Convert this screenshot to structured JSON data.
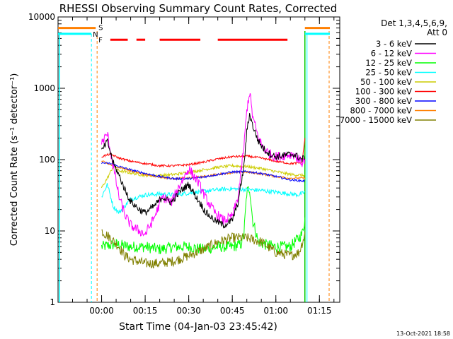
{
  "chart_data": {
    "type": "line",
    "title": "RHESSI Observing Summary Count Rates, Corrected",
    "xlabel": "Start Time (04-Jan-03 23:45:42)",
    "ylabel": "Corrected Count Rate (s⁻¹ detector⁻¹)",
    "y_scale": "log",
    "ylim": [
      1,
      10000
    ],
    "xlim_minutes": [
      -15,
      82
    ],
    "x_ticks": [
      {
        "label": "00:00",
        "minute": 0
      },
      {
        "label": "00:15",
        "minute": 15
      },
      {
        "label": "00:30",
        "minute": 30
      },
      {
        "label": "00:45",
        "minute": 45
      },
      {
        "label": "01:00",
        "minute": 60
      },
      {
        "label": "01:15",
        "minute": 75
      }
    ],
    "y_ticks": [
      {
        "label": "1",
        "value": 1
      },
      {
        "label": "10",
        "value": 10
      },
      {
        "label": "100",
        "value": 100
      },
      {
        "label": "1000",
        "value": 1000
      },
      {
        "label": "10000",
        "value": 10000
      }
    ],
    "legend_title": [
      "Det 1,3,4,5,6,9,",
      "Att 0"
    ],
    "legend_position": "right",
    "footer_date": "13-Oct-2021 18:58",
    "flags": {
      "S_label": "S",
      "N_label": "N",
      "F_label": "F",
      "S_color": "#ff7f00",
      "N_color": "#00ffff",
      "F_color": "#ff0000",
      "S_level": 7000,
      "N_level": 5800,
      "F_level": 4800,
      "F_segments": [
        [
          3,
          9
        ],
        [
          12,
          15
        ],
        [
          20,
          34
        ],
        [
          40,
          64
        ]
      ],
      "eclipse_end_minute": -3.5,
      "eclipse_start_minute": 70
    },
    "series": [
      {
        "name": "3 - 6 keV",
        "color": "#000000",
        "noise": 0.05,
        "x": [
          0,
          2,
          4,
          6,
          8,
          10,
          13,
          15,
          18,
          21,
          24,
          27,
          30,
          33,
          36,
          39,
          42,
          45,
          47,
          49,
          50,
          51,
          52,
          54,
          56,
          58,
          60,
          63,
          66,
          69,
          70
        ],
        "y": [
          130,
          180,
          90,
          60,
          38,
          26,
          20,
          18,
          22,
          30,
          25,
          36,
          45,
          28,
          18,
          14,
          12,
          14,
          25,
          80,
          250,
          440,
          300,
          180,
          140,
          120,
          110,
          115,
          120,
          100,
          110
        ]
      },
      {
        "name": "6 - 12 keV",
        "color": "#ff00ff",
        "noise": 0.07,
        "x": [
          0,
          2,
          4,
          6,
          8,
          10,
          13,
          15,
          18,
          21,
          24,
          27,
          30,
          33,
          36,
          39,
          42,
          45,
          47,
          49,
          50,
          51,
          52,
          54,
          56,
          58,
          60,
          63,
          66,
          69,
          70
        ],
        "y": [
          170,
          230,
          80,
          30,
          17,
          12,
          10,
          9,
          15,
          30,
          25,
          45,
          75,
          50,
          28,
          18,
          14,
          16,
          30,
          150,
          500,
          900,
          400,
          200,
          140,
          120,
          110,
          115,
          120,
          90,
          100
        ]
      },
      {
        "name": "12 - 25 keV",
        "color": "#00ff00",
        "noise": 0.08,
        "x": [
          0,
          5,
          10,
          15,
          20,
          25,
          30,
          35,
          40,
          45,
          48,
          49,
          50,
          51,
          52,
          54,
          56,
          60,
          65,
          69,
          70
        ],
        "y": [
          6,
          6.5,
          6,
          6,
          5.5,
          6,
          6,
          5.5,
          6,
          6,
          6.5,
          9,
          35,
          40,
          14,
          7,
          6.5,
          6,
          6,
          9,
          15
        ]
      },
      {
        "name": "25 - 50 keV",
        "color": "#00ffff",
        "noise": 0.03,
        "x": [
          0,
          2,
          4,
          6,
          10,
          15,
          20,
          25,
          30,
          35,
          40,
          45,
          50,
          55,
          60,
          65,
          68,
          70
        ],
        "y": [
          30,
          45,
          22,
          18,
          28,
          32,
          33,
          32,
          34,
          36,
          38,
          39,
          38,
          37,
          35,
          33,
          32,
          35
        ]
      },
      {
        "name": "50 - 100 keV",
        "color": "#cccc00",
        "noise": 0.02,
        "x": [
          0,
          2,
          4,
          6,
          10,
          15,
          20,
          25,
          30,
          35,
          40,
          45,
          50,
          55,
          60,
          65,
          70
        ],
        "y": [
          40,
          55,
          80,
          70,
          65,
          60,
          60,
          62,
          66,
          72,
          78,
          82,
          80,
          75,
          68,
          62,
          60
        ]
      },
      {
        "name": "100 - 300 keV",
        "color": "#ff0000",
        "noise": 0.015,
        "x": [
          0,
          3,
          6,
          10,
          15,
          20,
          25,
          30,
          35,
          40,
          45,
          50,
          55,
          60,
          65,
          69,
          70
        ],
        "y": [
          110,
          120,
          105,
          95,
          88,
          82,
          82,
          85,
          92,
          102,
          110,
          112,
          105,
          95,
          88,
          90,
          200
        ]
      },
      {
        "name": "300 - 800 keV",
        "color": "#0000ff",
        "noise": 0.015,
        "x": [
          0,
          3,
          6,
          10,
          15,
          20,
          25,
          30,
          35,
          40,
          45,
          50,
          55,
          60,
          65,
          70
        ],
        "y": [
          90,
          88,
          80,
          72,
          64,
          58,
          54,
          54,
          57,
          62,
          67,
          68,
          64,
          58,
          52,
          50
        ]
      },
      {
        "name": "800 - 7000 keV",
        "color": "#ff7f00",
        "noise": 0.015,
        "x": [
          0,
          3,
          6,
          10,
          15,
          20,
          25,
          30,
          35,
          40,
          45,
          50,
          55,
          60,
          65,
          70
        ],
        "y": [
          95,
          85,
          78,
          70,
          62,
          57,
          54,
          55,
          58,
          62,
          66,
          67,
          63,
          58,
          55,
          55
        ]
      },
      {
        "name": "7000 - 15000 keV",
        "color": "#808000",
        "noise": 0.07,
        "x": [
          0,
          3,
          6,
          8,
          10,
          15,
          20,
          25,
          30,
          35,
          40,
          45,
          50,
          55,
          60,
          65,
          68,
          70
        ],
        "y": [
          10,
          8,
          6,
          4.5,
          4,
          3.5,
          3.5,
          3.8,
          4.5,
          5.5,
          7,
          8,
          8,
          7,
          5,
          4.5,
          5,
          9
        ]
      }
    ]
  }
}
